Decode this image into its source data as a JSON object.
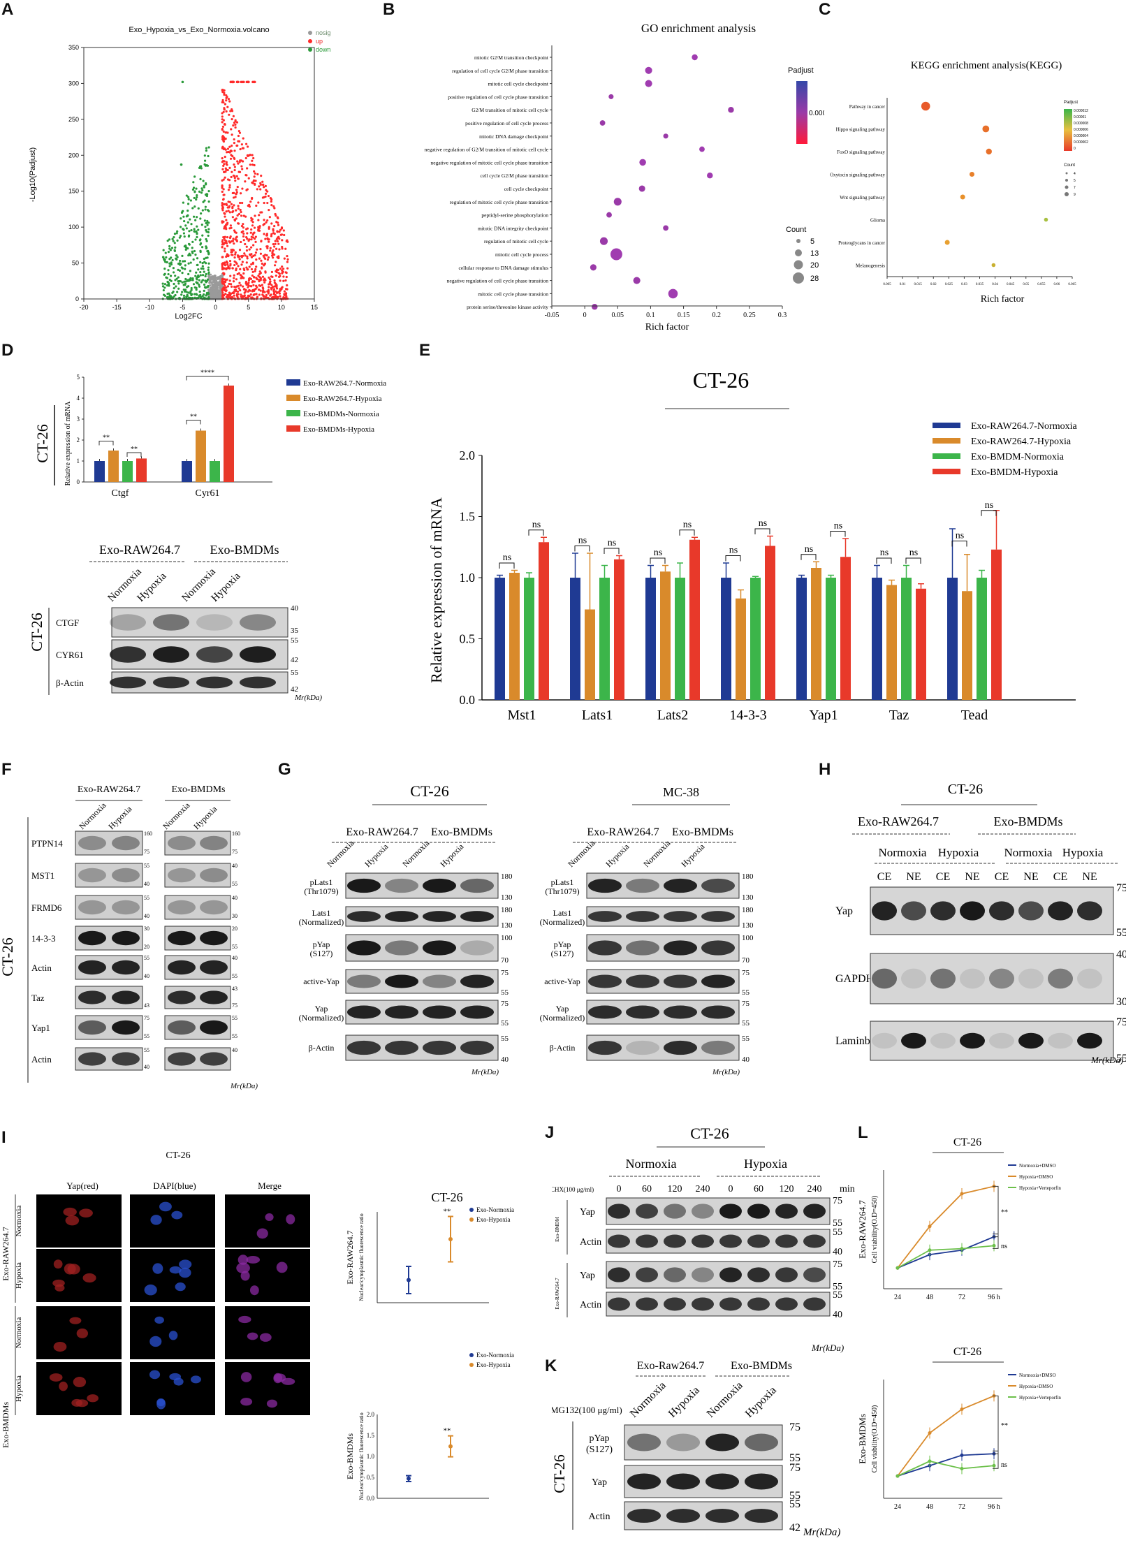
{
  "panel_labels": [
    "A",
    "B",
    "C",
    "D",
    "E",
    "F",
    "G",
    "H",
    "I",
    "J",
    "K",
    "L"
  ],
  "colors": {
    "nosig": "#9a9a9a",
    "up": "#ff2a2a",
    "down": "#2a9a3a",
    "navy": "#1f3a93",
    "orange": "#d98a2b",
    "green": "#3cb54a",
    "red": "#e8392a"
  },
  "A": {
    "title": "Exo_Hypoxia_vs_Exo_Normoxia.volcano",
    "xlabel": "Log2FC",
    "ylabel": "-Log10(Padjust)",
    "legend": [
      "nosig",
      "up",
      "down"
    ],
    "xticks": [
      "-20",
      "-15",
      "-10",
      "-5",
      "0",
      "5",
      "10",
      "15"
    ],
    "yticks": [
      "0",
      "50",
      "100",
      "150",
      "200",
      "250",
      "300",
      "350"
    ]
  },
  "B": {
    "title": "GO enrichment analysis",
    "xlabel": "Rich factor",
    "legend_title": "Padjust",
    "legend_tick": "0.00006",
    "count_title": "Count",
    "counts": [
      "5",
      "13",
      "20",
      "28"
    ],
    "xticks": [
      "-0.05",
      "0",
      "0.05",
      "0.1",
      "0.15",
      "0.2",
      "0.25",
      "0.3"
    ]
  },
  "C": {
    "title": "KEGG enrichment analysis(KEGG)",
    "xlabel": "Rich factor",
    "legend_title": "Padjust",
    "count_title": "Count",
    "legend_vals": [
      "0.000012",
      "0.00001",
      "0.000008",
      "0.000006",
      "0.000004",
      "0.000002",
      "0"
    ],
    "count_vals": [
      "4",
      "5",
      "7",
      "9"
    ],
    "xticks": [
      "0.005",
      "0.01",
      "0.015",
      "0.02",
      "0.025",
      "0.03",
      "0.035",
      "0.04",
      "0.045",
      "0.05",
      "0.055",
      "0.06",
      "0.065"
    ]
  },
  "D": {
    "side_label": "CT-26",
    "ylabel": "Relative expression of mRNA",
    "yticks": [
      "0",
      "1",
      "2",
      "3",
      "4",
      "5"
    ],
    "legend": [
      "Exo-RAW264.7-Normoxia",
      "Exo-RAW264.7-Hypoxia",
      "Exo-BMDMs-Normoxia",
      "Exo-BMDMs-Hypoxia"
    ],
    "sig": [
      "**",
      "**",
      "**",
      "****"
    ],
    "blot": {
      "groups": [
        "Exo-RAW264.7",
        "Exo-BMDMs"
      ],
      "lanes": [
        "Normoxia",
        "Hypoxia",
        "Normoxia",
        "Hypoxia"
      ],
      "rows": [
        "CTGF",
        "CYR61",
        "β-Actin"
      ],
      "markers": [
        "40",
        "35",
        "55",
        "42",
        "55",
        "42"
      ],
      "side": "CT-26",
      "unit": "Mr(kDa)"
    }
  },
  "E": {
    "title": "CT-26",
    "ylabel": "Relative expression of mRNA",
    "yticks": [
      "0.0",
      "0.5",
      "1.0",
      "1.5",
      "2.0"
    ],
    "legend": [
      "Exo-RAW264.7-Normoxia",
      "Exo-RAW264.7-Hypoxia",
      "Exo-BMDM-Normoxia",
      "Exo-BMDM-Hypoxia"
    ],
    "ns": "ns"
  },
  "F": {
    "side": "CT-26",
    "groups": [
      "Exo-RAW264.7",
      "Exo-BMDMs"
    ],
    "lanes": [
      "Normoxia",
      "Hypoxia",
      "Normoxia",
      "Hypoxia"
    ],
    "rows": [
      "PTPN14",
      "MST1",
      "FRMD6",
      "14-3-3",
      "Actin",
      "Taz",
      "Yap1",
      "Actin"
    ],
    "left_markers": [
      "160",
      "75",
      "55",
      "40",
      "55",
      "40",
      "30",
      "20",
      "55",
      "40",
      "",
      "43",
      "75",
      "55",
      "55",
      "40"
    ],
    "right_markers": [
      "160",
      "75",
      "40",
      "55",
      "40",
      "30",
      "20",
      "55",
      "40",
      "55",
      "43",
      "75",
      "55",
      "55",
      "40"
    ],
    "unit": "Mr(kDa)"
  },
  "G": {
    "ct_title": "CT-26",
    "mc_title": "MC-38",
    "groups": [
      "Exo-RAW264.7",
      "Exo-BMDMs"
    ],
    "lanes": [
      "Normoxia",
      "Hypoxia",
      "Normoxia",
      "Hypoxia"
    ],
    "rows": [
      "pLats1 (Thr1079)",
      "Lats1 (Normalized)",
      "pYap (S127)",
      "active-Yap",
      "Yap (Normalized)",
      "β-Actin"
    ],
    "markers": [
      "180",
      "130",
      "180",
      "130",
      "100",
      "70",
      "75",
      "55",
      "75",
      "55",
      "55",
      "40"
    ],
    "unit": "Mr(kDa)"
  },
  "H": {
    "title": "CT-26",
    "groups": [
      "Exo-RAW264.7",
      "Exo-BMDMs"
    ],
    "conds": [
      "Normoxia",
      "Hypoxia",
      "Normoxia",
      "Hypoxia"
    ],
    "fractions": [
      "CE",
      "NE",
      "CE",
      "NE",
      "CE",
      "NE",
      "CE",
      "NE"
    ],
    "rows": [
      "Yap",
      "GAPDH",
      "Laminb"
    ],
    "markers": [
      "75",
      "55",
      "40",
      "30",
      "75",
      "55"
    ],
    "unit": "Mr(kDa)"
  },
  "I": {
    "title": "CT-26",
    "cols": [
      "Yap(red)",
      "DAPI(blue)",
      "Merge"
    ],
    "groups": [
      "Exo-RAW264.7",
      "Exo-BMDMs"
    ],
    "rows": [
      "Normoxia",
      "Hypoxia",
      "Normoxia",
      "Hypoxia"
    ],
    "chart_title": "CT-26",
    "legend": [
      "Exo-Normoxia",
      "Exo-Hypoxia"
    ],
    "ylabel_top": "Nuclear/cytoplasmic fluorescence ratio",
    "ylabel_bottom": "Nuclear/cytoplasmic fluorescence ratio",
    "side_top": "Exo-RAW264.7",
    "side_bottom": "Exo-BMDMs",
    "sig": "**",
    "yticks_bottom": [
      "0.0",
      "0.5",
      "1.0",
      "1.5",
      "2.0"
    ]
  },
  "J": {
    "title": "CT-26",
    "conds": [
      "Normoxia",
      "Hypoxia"
    ],
    "chx": "CHX(100 μg/ml)",
    "times": [
      "0",
      "60",
      "120",
      "240",
      "0",
      "60",
      "120",
      "240"
    ],
    "time_unit": "min",
    "groups": [
      "Exo-BMDM",
      "Exo-RAW264.7"
    ],
    "rows": [
      "Yap",
      "Actin",
      "Yap",
      "Actin"
    ],
    "markers": [
      "75",
      "55",
      "55",
      "40",
      "75",
      "55",
      "55",
      "40"
    ],
    "unit": "Mr(kDa)"
  },
  "K": {
    "groups": [
      "Exo-Raw264.7",
      "Exo-BMDMs"
    ],
    "mg": "MG132(100 μg/ml)",
    "lanes": [
      "Normoxia",
      "Hypoxia",
      "Normoxia",
      "Hypoxia"
    ],
    "rows": [
      "pYap (S127)",
      "Yap",
      "Actin"
    ],
    "markers": [
      "75",
      "55",
      "75",
      "55",
      "55",
      "42"
    ],
    "side": "CT-26",
    "unit": "Mr(kDa)"
  },
  "L": {
    "title_top": "CT-26",
    "title_bottom": "CT-26",
    "side_top": "Exo-RAW264.7",
    "side_bottom": "Exo-BMDMs",
    "ylabel": "Cell viability(O.D=450)",
    "legend": [
      "Normoxia+DMSO",
      "Hypoxia+DMSO",
      "Hypoxia+Verteporfin"
    ],
    "xticks": [
      "24",
      "48",
      "72",
      "96 h"
    ],
    "sig": [
      "**",
      "ns"
    ]
  },
  "chart_data": [
    {
      "type": "scatter",
      "panel": "A",
      "title": "Exo_Hypoxia_vs_Exo_Normoxia.volcano",
      "xlabel": "Log2FC",
      "ylabel": "-Log10(Padjust)",
      "xlim": [
        -20,
        15
      ],
      "ylim": [
        0,
        350
      ],
      "series": [
        {
          "name": "nosig"
        },
        {
          "name": "up"
        },
        {
          "name": "down"
        }
      ]
    },
    {
      "type": "scatter",
      "panel": "B",
      "title": "GO enrichment analysis",
      "xlabel": "Rich factor",
      "xlim": [
        -0.05,
        0.3
      ],
      "categories": [
        "mitotic G2/M transition checkpoint",
        "regulation of cell cycle G2/M phase transition",
        "mitotic cell cycle checkpoint",
        "positive regulation of cell cycle phase transition",
        "G2/M transition of mitotic cell cycle",
        "positive regulation of cell cycle process",
        "mitotic DNA damage checkpoint",
        "negative regulation of G2/M transition of mitotic cell cycle",
        "negative regulation of mitotic cell cycle phase transition",
        "cell cycle G2/M phase transition",
        "cell cycle checkpoint",
        "regulation of mitotic cell cycle phase transition",
        "peptidyl-serine phosphorylation",
        "mitotic DNA integrity checkpoint",
        "regulation of mitotic cell cycle",
        "mitotic cell cycle process",
        "cellular response to DNA damage stimulus",
        "negative regulation of cell cycle phase transition",
        "mitotic cell cycle phase transition",
        "protein serine/threonine kinase activity"
      ],
      "x": [
        0.167,
        0.097,
        0.097,
        0.04,
        0.222,
        0.027,
        0.123,
        0.178,
        0.088,
        0.19,
        0.087,
        0.05,
        0.037,
        0.123,
        0.029,
        0.048,
        0.013,
        0.079,
        0.134,
        0.015
      ],
      "size": [
        7,
        10,
        10,
        5,
        7,
        6,
        5,
        6,
        9,
        7,
        8,
        12,
        6,
        6,
        12,
        28,
        8,
        10,
        18,
        7
      ]
    },
    {
      "type": "scatter",
      "panel": "C",
      "title": "KEGG enrichment analysis(KEGG)",
      "xlabel": "Rich factor",
      "xlim": [
        0.005,
        0.065
      ],
      "categories": [
        "Pathway in cancer",
        "Hippo signaling pathway",
        "FoxO signaling pathway",
        "Oxytocin signaling pathway",
        "Wnt signaling pathway",
        "Glioma",
        "Proteoglycans in cancer",
        "Melanogenesis"
      ],
      "x": [
        0.0175,
        0.037,
        0.038,
        0.0325,
        0.0295,
        0.0565,
        0.0245,
        0.0395
      ],
      "size": [
        9,
        7,
        6,
        5,
        5,
        4,
        5,
        4
      ]
    },
    {
      "type": "bar",
      "panel": "D",
      "ylabel": "Relative expression of mRNA",
      "ylim": [
        0,
        5
      ],
      "categories": [
        "Ctgf",
        "Cyr61"
      ],
      "series": [
        {
          "name": "Exo-RAW264.7-Normoxia",
          "values": [
            1.0,
            1.0
          ]
        },
        {
          "name": "Exo-RAW264.7-Hypoxia",
          "values": [
            1.5,
            2.45
          ]
        },
        {
          "name": "Exo-BMDMs-Normoxia",
          "values": [
            1.0,
            1.0
          ]
        },
        {
          "name": "Exo-BMDMs-Hypoxia",
          "values": [
            1.12,
            4.6
          ]
        }
      ]
    },
    {
      "type": "bar",
      "panel": "E",
      "title": "CT-26",
      "ylabel": "Relative expression of mRNA",
      "ylim": [
        0,
        2.0
      ],
      "categories": [
        "Mst1",
        "Lats1",
        "Lats2",
        "14-3-3",
        "Yap1",
        "Taz",
        "Tead"
      ],
      "series": [
        {
          "name": "Exo-RAW264.7-Normoxia",
          "values": [
            1.0,
            1.0,
            1.0,
            1.0,
            1.0,
            1.0,
            1.0
          ],
          "err": [
            0.02,
            0.2,
            0.1,
            0.12,
            0.02,
            0.1,
            0.4
          ]
        },
        {
          "name": "Exo-RAW264.7-Hypoxia",
          "values": [
            1.04,
            0.74,
            1.05,
            0.83,
            1.08,
            0.94,
            0.89
          ],
          "err": [
            0.02,
            0.46,
            0.05,
            0.07,
            0.05,
            0.04,
            0.3
          ]
        },
        {
          "name": "Exo-BMDM-Normoxia",
          "values": [
            1.0,
            1.0,
            1.0,
            1.0,
            1.0,
            1.0,
            1.0
          ],
          "err": [
            0.04,
            0.1,
            0.12,
            0.01,
            0.02,
            0.1,
            0.06
          ]
        },
        {
          "name": "Exo-BMDM-Hypoxia",
          "values": [
            1.29,
            1.15,
            1.31,
            1.26,
            1.17,
            0.91,
            1.23
          ],
          "err": [
            0.04,
            0.03,
            0.02,
            0.08,
            0.15,
            0.04,
            0.32
          ]
        }
      ]
    },
    {
      "type": "scatter",
      "panel": "I-top",
      "ylabel": "Nuclear/cytoplasmic fluorescence ratio",
      "categories": [
        "Exo-Normoxia",
        "Exo-Hypoxia"
      ],
      "values": [
        1.0,
        2.8
      ],
      "err": [
        0.6,
        1.0
      ],
      "ylim": [
        0,
        4
      ]
    },
    {
      "type": "scatter",
      "panel": "I-bottom",
      "ylabel": "Nuclear/cytoplasmic fluorescence ratio",
      "categories": [
        "Exo-Normoxia",
        "Exo-Hypoxia"
      ],
      "values": [
        0.47,
        1.24
      ],
      "err": [
        0.07,
        0.25
      ],
      "ylim": [
        0,
        2.0
      ]
    },
    {
      "type": "line",
      "panel": "L-top",
      "title": "CT-26",
      "ylabel": "Cell viability(O.D=450)",
      "x": [
        "24",
        "48",
        "72",
        "96 h"
      ],
      "series": [
        {
          "name": "Normoxia+DMSO",
          "values": [
            0.7,
            1.15,
            1.3,
            1.75
          ]
        },
        {
          "name": "Hypoxia+DMSO",
          "values": [
            0.7,
            2.1,
            3.2,
            3.45
          ]
        },
        {
          "name": "Hypoxia+Verteporfin",
          "values": [
            0.7,
            1.3,
            1.35,
            1.45
          ]
        }
      ],
      "ylim": [
        0,
        4
      ]
    },
    {
      "type": "line",
      "panel": "L-bottom",
      "title": "CT-26",
      "ylabel": "Cell viability(O.D=450)",
      "x": [
        "24",
        "48",
        "72",
        "96 h"
      ],
      "series": [
        {
          "name": "Normoxia+DMSO",
          "values": [
            0.75,
            1.1,
            1.45,
            1.5
          ]
        },
        {
          "name": "Hypoxia+DMSO",
          "values": [
            0.75,
            2.2,
            3.0,
            3.45
          ]
        },
        {
          "name": "Hypoxia+Verteporfin",
          "values": [
            0.75,
            1.25,
            1.0,
            1.1
          ]
        }
      ],
      "ylim": [
        0,
        4
      ]
    }
  ]
}
